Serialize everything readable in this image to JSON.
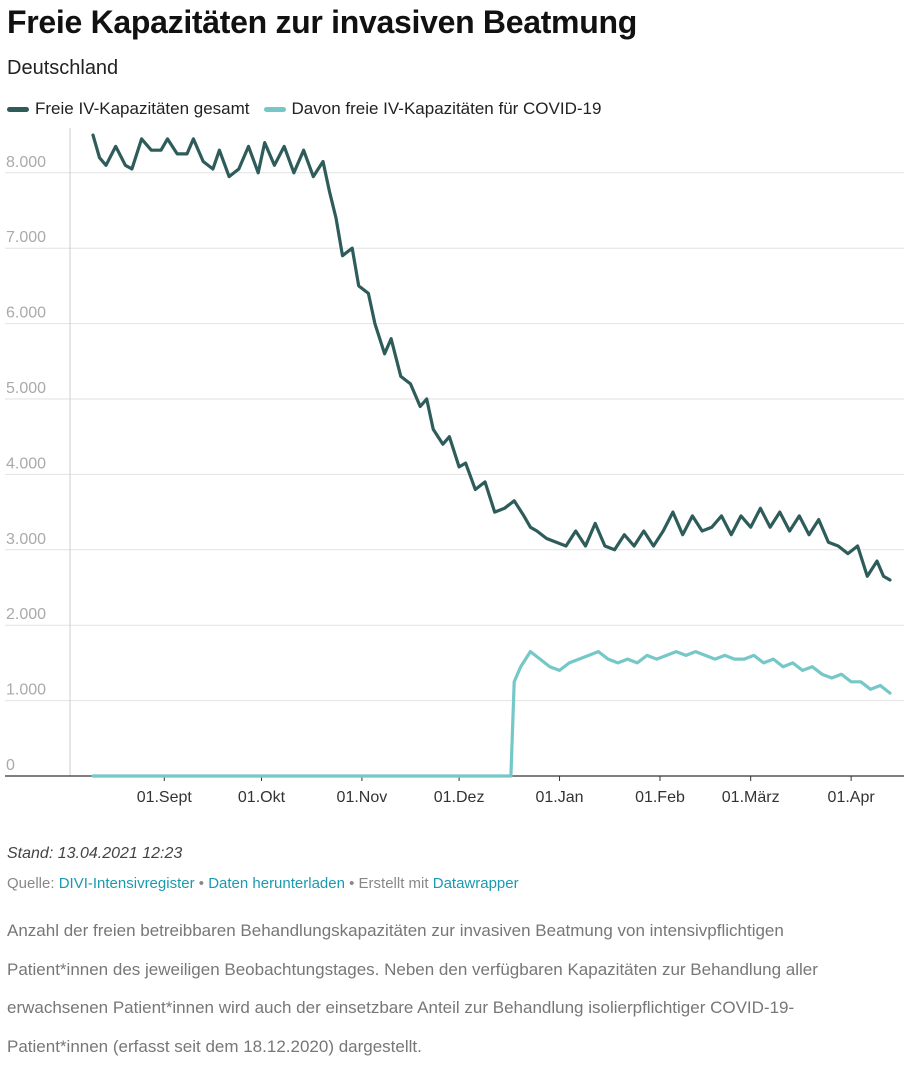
{
  "header": {
    "title": "Freie Kapazitäten zur invasiven Beatmung",
    "subtitle": "Deutschland"
  },
  "legend": [
    {
      "label": "Freie IV-Kapazitäten gesamt",
      "color": "#2e5c5a"
    },
    {
      "label": "Davon freie IV-Kapazitäten für COVID-19",
      "color": "#76c7c7"
    }
  ],
  "chart_data": {
    "type": "line",
    "title": "Freie Kapazitäten zur invasiven Beatmung",
    "subtitle": "Deutschland",
    "x_start": "2020-08-10",
    "x_end": "2021-04-13",
    "x_ticks": [
      {
        "label": "01.Sept",
        "date": "2020-09-01"
      },
      {
        "label": "01.Okt",
        "date": "2020-10-01"
      },
      {
        "label": "01.Nov",
        "date": "2020-11-01"
      },
      {
        "label": "01.Dez",
        "date": "2020-12-01"
      },
      {
        "label": "01.Jan",
        "date": "2021-01-01"
      },
      {
        "label": "01.Feb",
        "date": "2021-02-01"
      },
      {
        "label": "01.März",
        "date": "2021-03-01"
      },
      {
        "label": "01.Apr",
        "date": "2021-04-01"
      }
    ],
    "y_ticks": [
      0,
      1000,
      2000,
      3000,
      4000,
      5000,
      6000,
      7000,
      8000
    ],
    "y_tick_labels": [
      "0",
      "1.000",
      "2.000",
      "3.000",
      "4.000",
      "5.000",
      "6.000",
      "7.000",
      "8.000"
    ],
    "ylim": [
      0,
      8500
    ],
    "series": [
      {
        "name": "Freie IV-Kapazitäten gesamt",
        "color": "#2e5c5a",
        "points": [
          [
            "2020-08-10",
            8500
          ],
          [
            "2020-08-12",
            8200
          ],
          [
            "2020-08-14",
            8100
          ],
          [
            "2020-08-17",
            8350
          ],
          [
            "2020-08-20",
            8100
          ],
          [
            "2020-08-22",
            8050
          ],
          [
            "2020-08-25",
            8450
          ],
          [
            "2020-08-28",
            8300
          ],
          [
            "2020-08-31",
            8300
          ],
          [
            "2020-09-02",
            8450
          ],
          [
            "2020-09-05",
            8250
          ],
          [
            "2020-09-08",
            8250
          ],
          [
            "2020-09-10",
            8450
          ],
          [
            "2020-09-13",
            8150
          ],
          [
            "2020-09-16",
            8050
          ],
          [
            "2020-09-18",
            8300
          ],
          [
            "2020-09-21",
            7950
          ],
          [
            "2020-09-24",
            8050
          ],
          [
            "2020-09-27",
            8350
          ],
          [
            "2020-09-30",
            8000
          ],
          [
            "2020-10-02",
            8400
          ],
          [
            "2020-10-05",
            8100
          ],
          [
            "2020-10-08",
            8350
          ],
          [
            "2020-10-11",
            8000
          ],
          [
            "2020-10-14",
            8300
          ],
          [
            "2020-10-17",
            7950
          ],
          [
            "2020-10-20",
            8150
          ],
          [
            "2020-10-22",
            7750
          ],
          [
            "2020-10-24",
            7400
          ],
          [
            "2020-10-26",
            6900
          ],
          [
            "2020-10-29",
            7000
          ],
          [
            "2020-10-31",
            6500
          ],
          [
            "2020-11-03",
            6400
          ],
          [
            "2020-11-05",
            6000
          ],
          [
            "2020-11-08",
            5600
          ],
          [
            "2020-11-10",
            5800
          ],
          [
            "2020-11-13",
            5300
          ],
          [
            "2020-11-16",
            5200
          ],
          [
            "2020-11-19",
            4900
          ],
          [
            "2020-11-21",
            5000
          ],
          [
            "2020-11-23",
            4600
          ],
          [
            "2020-11-26",
            4400
          ],
          [
            "2020-11-28",
            4500
          ],
          [
            "2020-12-01",
            4100
          ],
          [
            "2020-12-03",
            4150
          ],
          [
            "2020-12-06",
            3800
          ],
          [
            "2020-12-09",
            3900
          ],
          [
            "2020-12-12",
            3500
          ],
          [
            "2020-12-15",
            3550
          ],
          [
            "2020-12-18",
            3650
          ],
          [
            "2020-12-21",
            3450
          ],
          [
            "2020-12-23",
            3300
          ],
          [
            "2020-12-25",
            3250
          ],
          [
            "2020-12-28",
            3150
          ],
          [
            "2020-12-31",
            3100
          ],
          [
            "2021-01-03",
            3050
          ],
          [
            "2021-01-06",
            3250
          ],
          [
            "2021-01-09",
            3050
          ],
          [
            "2021-01-12",
            3350
          ],
          [
            "2021-01-15",
            3050
          ],
          [
            "2021-01-18",
            3000
          ],
          [
            "2021-01-21",
            3200
          ],
          [
            "2021-01-24",
            3050
          ],
          [
            "2021-01-27",
            3250
          ],
          [
            "2021-01-30",
            3050
          ],
          [
            "2021-02-02",
            3250
          ],
          [
            "2021-02-05",
            3500
          ],
          [
            "2021-02-08",
            3200
          ],
          [
            "2021-02-11",
            3450
          ],
          [
            "2021-02-14",
            3250
          ],
          [
            "2021-02-17",
            3300
          ],
          [
            "2021-02-20",
            3450
          ],
          [
            "2021-02-23",
            3200
          ],
          [
            "2021-02-26",
            3450
          ],
          [
            "2021-03-01",
            3300
          ],
          [
            "2021-03-04",
            3550
          ],
          [
            "2021-03-07",
            3300
          ],
          [
            "2021-03-10",
            3500
          ],
          [
            "2021-03-13",
            3250
          ],
          [
            "2021-03-16",
            3450
          ],
          [
            "2021-03-19",
            3200
          ],
          [
            "2021-03-22",
            3400
          ],
          [
            "2021-03-25",
            3100
          ],
          [
            "2021-03-28",
            3050
          ],
          [
            "2021-03-31",
            2950
          ],
          [
            "2021-04-03",
            3050
          ],
          [
            "2021-04-06",
            2650
          ],
          [
            "2021-04-09",
            2850
          ],
          [
            "2021-04-11",
            2650
          ],
          [
            "2021-04-13",
            2600
          ]
        ]
      },
      {
        "name": "Davon freie IV-Kapazitäten für COVID-19",
        "color": "#76c7c7",
        "points": [
          [
            "2020-08-10",
            0
          ],
          [
            "2020-12-17",
            0
          ],
          [
            "2020-12-18",
            1250
          ],
          [
            "2020-12-20",
            1450
          ],
          [
            "2020-12-23",
            1650
          ],
          [
            "2020-12-26",
            1550
          ],
          [
            "2020-12-29",
            1450
          ],
          [
            "2021-01-01",
            1400
          ],
          [
            "2021-01-04",
            1500
          ],
          [
            "2021-01-07",
            1550
          ],
          [
            "2021-01-10",
            1600
          ],
          [
            "2021-01-13",
            1650
          ],
          [
            "2021-01-16",
            1550
          ],
          [
            "2021-01-19",
            1500
          ],
          [
            "2021-01-22",
            1550
          ],
          [
            "2021-01-25",
            1500
          ],
          [
            "2021-01-28",
            1600
          ],
          [
            "2021-01-31",
            1550
          ],
          [
            "2021-02-03",
            1600
          ],
          [
            "2021-02-06",
            1650
          ],
          [
            "2021-02-09",
            1600
          ],
          [
            "2021-02-12",
            1650
          ],
          [
            "2021-02-15",
            1600
          ],
          [
            "2021-02-18",
            1550
          ],
          [
            "2021-02-21",
            1600
          ],
          [
            "2021-02-24",
            1550
          ],
          [
            "2021-02-27",
            1550
          ],
          [
            "2021-03-02",
            1600
          ],
          [
            "2021-03-05",
            1500
          ],
          [
            "2021-03-08",
            1550
          ],
          [
            "2021-03-11",
            1450
          ],
          [
            "2021-03-14",
            1500
          ],
          [
            "2021-03-17",
            1400
          ],
          [
            "2021-03-20",
            1450
          ],
          [
            "2021-03-23",
            1350
          ],
          [
            "2021-03-26",
            1300
          ],
          [
            "2021-03-29",
            1350
          ],
          [
            "2021-04-01",
            1250
          ],
          [
            "2021-04-04",
            1250
          ],
          [
            "2021-04-07",
            1150
          ],
          [
            "2021-04-10",
            1200
          ],
          [
            "2021-04-13",
            1100
          ]
        ]
      }
    ]
  },
  "footer": {
    "stand": "Stand: 13.04.2021 12:23",
    "source_prefix": "Quelle: ",
    "source_link": "DIVI-Intensivregister",
    "separator": " • ",
    "download_link": "Daten herunterladen",
    "created_with": "Erstellt mit ",
    "datawrapper_link": "Datawrapper",
    "description": "Anzahl der freien betreibbaren Behandlungskapazitäten zur invasiven Beatmung von intensivpflichtigen Patient*innen des jeweiligen Beobachtungstages. Neben den verfügbaren Kapazitäten zur Behandlung aller erwachsenen Patient*innen wird auch der einsetzbare Anteil zur Behandlung isolierpflichtiger COVID-19-Patient*innen (erfasst seit dem 18.12.2020) dargestellt."
  }
}
